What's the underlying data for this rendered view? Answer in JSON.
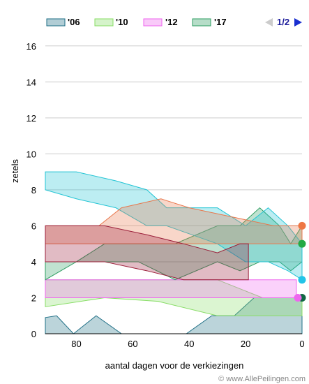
{
  "chart_data": {
    "type": "area",
    "ylabel": "zetels",
    "xlabel": "aantal dagen voor de verkiezingen",
    "xlim": [
      91,
      0
    ],
    "ylim": [
      0,
      17
    ],
    "x_ticks": [
      80,
      60,
      40,
      20,
      0
    ],
    "y_ticks": [
      0,
      2,
      4,
      6,
      8,
      10,
      12,
      14,
      16
    ],
    "grid": "horizontal",
    "legend_position": "top",
    "series": [
      {
        "name": "'06",
        "color": "#1f6f86",
        "band": [
          {
            "x": 91,
            "lo": 0,
            "hi": 0.9
          },
          {
            "x": 87,
            "lo": 0,
            "hi": 1
          },
          {
            "x": 81,
            "lo": 0,
            "hi": 0
          },
          {
            "x": 73,
            "lo": 0,
            "hi": 1
          },
          {
            "x": 64,
            "lo": 0,
            "hi": 0
          },
          {
            "x": 41,
            "lo": 0,
            "hi": 0
          },
          {
            "x": 32,
            "lo": 0,
            "hi": 1
          },
          {
            "x": 24,
            "lo": 0,
            "hi": 1
          },
          {
            "x": 17,
            "lo": 0,
            "hi": 2
          },
          {
            "x": 8,
            "lo": 0,
            "hi": 2
          },
          {
            "x": 3,
            "lo": 0,
            "hi": 2
          },
          {
            "x": 0,
            "lo": 0,
            "hi": 2
          }
        ],
        "final": 2
      },
      {
        "name": "'10",
        "color": "#88dd66",
        "band": [
          {
            "x": 91,
            "lo": 1.5,
            "hi": 3
          },
          {
            "x": 70,
            "lo": 2,
            "hi": 3
          },
          {
            "x": 51,
            "lo": 1.8,
            "hi": 3
          },
          {
            "x": 30,
            "lo": 1,
            "hi": 3
          },
          {
            "x": 14,
            "lo": 1,
            "hi": 2
          },
          {
            "x": 5,
            "lo": 1,
            "hi": 2
          },
          {
            "x": 0,
            "lo": 1,
            "hi": 2
          }
        ],
        "final": 2
      },
      {
        "name": "'12",
        "color": "#ee66ee",
        "band": [
          {
            "x": 91,
            "lo": 2,
            "hi": 3
          },
          {
            "x": 60,
            "lo": 2,
            "hi": 3
          },
          {
            "x": 40,
            "lo": 2,
            "hi": 3
          },
          {
            "x": 20,
            "lo": 2,
            "hi": 3
          },
          {
            "x": 10,
            "lo": 2,
            "hi": 3
          },
          {
            "x": 2,
            "lo": 2,
            "hi": 3
          }
        ],
        "final": 2
      },
      {
        "name": "'17",
        "color": "#2e9e62",
        "band": [
          {
            "x": 91,
            "lo": 3,
            "hi": 4
          },
          {
            "x": 80,
            "lo": 4,
            "hi": 4
          },
          {
            "x": 70,
            "lo": 4,
            "hi": 5
          },
          {
            "x": 58,
            "lo": 4,
            "hi": 5
          },
          {
            "x": 45,
            "lo": 3,
            "hi": 5
          },
          {
            "x": 30,
            "lo": 4,
            "hi": 6
          },
          {
            "x": 22,
            "lo": 3.5,
            "hi": 6
          },
          {
            "x": 15,
            "lo": 4,
            "hi": 7
          },
          {
            "x": 8,
            "lo": 4,
            "hi": 6
          },
          {
            "x": 4,
            "lo": 3.5,
            "hi": 5
          },
          {
            "x": 0,
            "lo": 4,
            "hi": 6
          }
        ],
        "final": 5
      },
      {
        "name": "",
        "color": "#22c4d4",
        "band": [
          {
            "x": 91,
            "lo": 8,
            "hi": 9
          },
          {
            "x": 80,
            "lo": 7.5,
            "hi": 9
          },
          {
            "x": 66,
            "lo": 7,
            "hi": 8.5
          },
          {
            "x": 55,
            "lo": 6,
            "hi": 8
          },
          {
            "x": 48,
            "lo": 6,
            "hi": 7
          },
          {
            "x": 30,
            "lo": 5,
            "hi": 7
          },
          {
            "x": 20,
            "lo": 4,
            "hi": 6
          },
          {
            "x": 12,
            "lo": 4,
            "hi": 7
          },
          {
            "x": 5,
            "lo": 3.5,
            "hi": 6
          },
          {
            "x": 0,
            "lo": 3,
            "hi": 5
          }
        ],
        "final": 3
      },
      {
        "name": "",
        "color": "#e8774c",
        "band": [
          {
            "x": 91,
            "lo": 5,
            "hi": 6
          },
          {
            "x": 72,
            "lo": 5,
            "hi": 6
          },
          {
            "x": 64,
            "lo": 5,
            "hi": 7
          },
          {
            "x": 50,
            "lo": 5,
            "hi": 7.5
          },
          {
            "x": 40,
            "lo": 5,
            "hi": 7
          },
          {
            "x": 25,
            "lo": 5,
            "hi": 6.5
          },
          {
            "x": 10,
            "lo": 5,
            "hi": 6
          },
          {
            "x": 0,
            "lo": 5,
            "hi": 6
          }
        ],
        "final": 6
      },
      {
        "name": "",
        "color": "#9c1f3a",
        "band": [
          {
            "x": 91,
            "lo": 4,
            "hi": 6
          },
          {
            "x": 70,
            "lo": 4,
            "hi": 6
          },
          {
            "x": 55,
            "lo": 3.5,
            "hi": 5.5
          },
          {
            "x": 42,
            "lo": 3,
            "hi": 5
          },
          {
            "x": 30,
            "lo": 3,
            "hi": 4.5
          },
          {
            "x": 22,
            "lo": 3,
            "hi": 5
          },
          {
            "x": 19,
            "lo": 3,
            "hi": 5
          }
        ],
        "final": null
      }
    ],
    "end_markers": [
      {
        "value": 6,
        "color": "#ee7744"
      },
      {
        "value": 5,
        "color": "#22aa44"
      },
      {
        "value": 3,
        "color": "#22c4e8"
      },
      {
        "value": 2,
        "color": "#116644"
      },
      {
        "value": 2,
        "color": "#ee66ee"
      }
    ]
  },
  "legend": {
    "items": [
      {
        "label": "'06",
        "color": "#1f6f86"
      },
      {
        "label": "'10",
        "color": "#88dd66"
      },
      {
        "label": "'12",
        "color": "#ee66ee"
      },
      {
        "label": "'17",
        "color": "#2e9e62"
      }
    ],
    "page": "1/2"
  },
  "credit": "© www.AllePeilingen.com"
}
